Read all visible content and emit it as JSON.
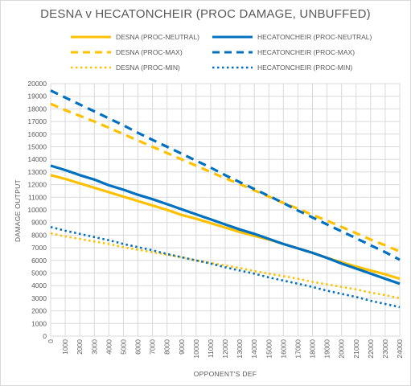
{
  "chart_data": {
    "type": "line",
    "title": "DESNA v HECATONCHEIR (PROC DAMAGE, UNBUFFED)",
    "xlabel": "OPPONENT'S DEF",
    "ylabel": "DAMAGE OUTPUT",
    "xlim": [
      0,
      24000
    ],
    "ylim": [
      0,
      20000
    ],
    "x_ticks": [
      "0",
      "1000",
      "2000",
      "3000",
      "4000",
      "5000",
      "6000",
      "7000",
      "8000",
      "9000",
      "10000",
      "11000",
      "12000",
      "13000",
      "14000",
      "15000",
      "16000",
      "17000",
      "18000",
      "19000",
      "20000",
      "21000",
      "22000",
      "23000",
      "24000"
    ],
    "y_ticks": [
      "0",
      "1000",
      "2000",
      "3000",
      "4000",
      "5000",
      "6000",
      "7000",
      "8000",
      "9000",
      "10000",
      "11000",
      "12000",
      "13000",
      "14000",
      "15000",
      "16000",
      "17000",
      "18000",
      "19000",
      "20000"
    ],
    "grid": true,
    "legend_position": "top",
    "x": [
      0,
      1000,
      2000,
      3000,
      4000,
      5000,
      6000,
      7000,
      8000,
      9000,
      10000,
      11000,
      12000,
      13000,
      14000,
      15000,
      16000,
      17000,
      18000,
      19000,
      20000,
      21000,
      22000,
      23000,
      24000
    ],
    "series": [
      {
        "name": "DESNA (PROC-NEUTRAL)",
        "color": "#ffc000",
        "style": "solid",
        "values": [
          12750,
          12450,
          12100,
          11750,
          11400,
          11050,
          10700,
          10350,
          10000,
          9600,
          9300,
          8950,
          8600,
          8250,
          7950,
          7650,
          7300,
          6950,
          6600,
          6200,
          5850,
          5500,
          5200,
          4900,
          4550
        ]
      },
      {
        "name": "HECATONCHEIR (PROC-NEUTRAL)",
        "color": "#0070c0",
        "style": "solid",
        "values": [
          13500,
          13150,
          12750,
          12400,
          11950,
          11600,
          11200,
          10850,
          10450,
          10050,
          9650,
          9250,
          8850,
          8450,
          8100,
          7700,
          7300,
          6950,
          6600,
          6200,
          5750,
          5350,
          4950,
          4550,
          4150
        ]
      },
      {
        "name": "DESNA (PROC-MAX)",
        "color": "#ffc000",
        "style": "dash",
        "values": [
          18400,
          17900,
          17450,
          17000,
          16500,
          16000,
          15500,
          15000,
          14500,
          14000,
          13500,
          13000,
          12500,
          12050,
          11550,
          11050,
          10550,
          10100,
          9600,
          9150,
          8650,
          8150,
          7650,
          7200,
          6700
        ]
      },
      {
        "name": "HECATONCHEIR (PROC-MAX)",
        "color": "#0070c0",
        "style": "dash",
        "values": [
          19450,
          18900,
          18350,
          17800,
          17250,
          16700,
          16100,
          15550,
          15000,
          14450,
          13900,
          13350,
          12750,
          12200,
          11650,
          11100,
          10550,
          9950,
          9400,
          8850,
          8300,
          7750,
          7200,
          6650,
          6050
        ]
      },
      {
        "name": "DESNA (PROC-MIN)",
        "color": "#ffc000",
        "style": "dot",
        "values": [
          8150,
          7900,
          7700,
          7500,
          7300,
          7050,
          6850,
          6650,
          6450,
          6250,
          6000,
          5800,
          5600,
          5400,
          5150,
          4950,
          4750,
          4550,
          4300,
          4100,
          3900,
          3700,
          3450,
          3250,
          3000
        ]
      },
      {
        "name": "HECATONCHEIR (PROC-MIN)",
        "color": "#0070c0",
        "style": "dot",
        "values": [
          8650,
          8350,
          8100,
          7850,
          7600,
          7300,
          7050,
          6800,
          6500,
          6250,
          6000,
          5750,
          5450,
          5200,
          4950,
          4650,
          4400,
          4150,
          3900,
          3600,
          3350,
          3100,
          2800,
          2550,
          2300
        ]
      }
    ]
  }
}
